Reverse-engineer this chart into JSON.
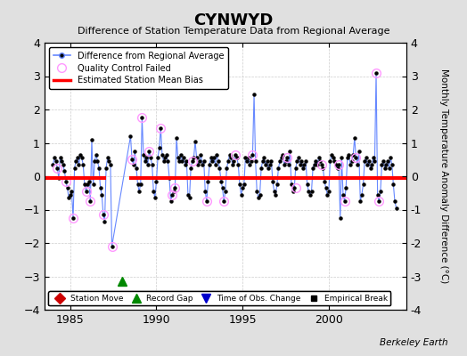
{
  "title": "CYNWYD",
  "subtitle": "Difference of Station Temperature Data from Regional Average",
  "ylabel_right": "Monthly Temperature Anomaly Difference (°C)",
  "xlim": [
    1983.5,
    2004.5
  ],
  "ylim": [
    -4,
    4
  ],
  "yticks": [
    -4,
    -3,
    -2,
    -1,
    0,
    1,
    2,
    3,
    4
  ],
  "xticks": [
    1985,
    1990,
    1995,
    2000
  ],
  "bias_value": -0.05,
  "bias_xstart": 1983.5,
  "bias_xend": 1987.1,
  "bias2_xstart": 1988.4,
  "bias2_xend": 2004.5,
  "background_color": "#e0e0e0",
  "plot_bg_color": "#ffffff",
  "line_color": "#6688ff",
  "dot_color": "#000000",
  "bias_color": "#ff0000",
  "qc_color": "#ff99ff",
  "record_gap_x": 1988.0,
  "record_gap_y": -3.15,
  "data_x": [
    1984.0,
    1984.083,
    1984.167,
    1984.25,
    1984.333,
    1984.417,
    1984.5,
    1984.583,
    1984.667,
    1984.75,
    1984.833,
    1984.917,
    1985.0,
    1985.083,
    1985.167,
    1985.25,
    1985.333,
    1985.417,
    1985.5,
    1985.583,
    1985.667,
    1985.75,
    1985.833,
    1985.917,
    1986.0,
    1986.083,
    1986.167,
    1986.25,
    1986.333,
    1986.417,
    1986.5,
    1986.583,
    1986.667,
    1986.75,
    1986.833,
    1986.917,
    1987.0,
    1987.083,
    1987.167,
    1987.25,
    1987.333,
    1987.417,
    1988.5,
    1988.583,
    1988.667,
    1988.75,
    1988.833,
    1988.917,
    1989.0,
    1989.083,
    1989.167,
    1989.25,
    1989.333,
    1989.417,
    1989.5,
    1989.583,
    1989.667,
    1989.75,
    1989.833,
    1989.917,
    1990.0,
    1990.083,
    1990.167,
    1990.25,
    1990.333,
    1990.417,
    1990.5,
    1990.583,
    1990.667,
    1990.75,
    1990.833,
    1990.917,
    1991.0,
    1991.083,
    1991.167,
    1991.25,
    1991.333,
    1991.417,
    1991.5,
    1991.583,
    1991.667,
    1991.75,
    1991.833,
    1991.917,
    1992.0,
    1992.083,
    1992.167,
    1992.25,
    1992.333,
    1992.417,
    1992.5,
    1992.583,
    1992.667,
    1992.75,
    1992.833,
    1992.917,
    1993.0,
    1993.083,
    1993.167,
    1993.25,
    1993.333,
    1993.417,
    1993.5,
    1993.583,
    1993.667,
    1993.75,
    1993.833,
    1993.917,
    1994.0,
    1994.083,
    1994.167,
    1994.25,
    1994.333,
    1994.417,
    1994.5,
    1994.583,
    1994.667,
    1994.75,
    1994.833,
    1994.917,
    1995.0,
    1995.083,
    1995.167,
    1995.25,
    1995.333,
    1995.417,
    1995.5,
    1995.583,
    1995.667,
    1995.75,
    1995.833,
    1995.917,
    1996.0,
    1996.083,
    1996.167,
    1996.25,
    1996.333,
    1996.417,
    1996.5,
    1996.583,
    1996.667,
    1996.75,
    1996.833,
    1996.917,
    1997.0,
    1997.083,
    1997.167,
    1997.25,
    1997.333,
    1997.417,
    1997.5,
    1997.583,
    1997.667,
    1997.75,
    1997.833,
    1997.917,
    1998.0,
    1998.083,
    1998.167,
    1998.25,
    1998.333,
    1998.417,
    1998.5,
    1998.583,
    1998.667,
    1998.75,
    1998.833,
    1998.917,
    1999.0,
    1999.083,
    1999.167,
    1999.25,
    1999.333,
    1999.417,
    1999.5,
    1999.583,
    1999.667,
    1999.75,
    1999.833,
    1999.917,
    2000.0,
    2000.083,
    2000.167,
    2000.25,
    2000.333,
    2000.417,
    2000.5,
    2000.583,
    2000.667,
    2000.75,
    2000.833,
    2000.917,
    2001.0,
    2001.083,
    2001.167,
    2001.25,
    2001.333,
    2001.417,
    2001.5,
    2001.583,
    2001.667,
    2001.75,
    2001.833,
    2001.917,
    2002.0,
    2002.083,
    2002.167,
    2002.25,
    2002.333,
    2002.417,
    2002.5,
    2002.583,
    2002.667,
    2002.75,
    2002.833,
    2002.917,
    2003.0,
    2003.083,
    2003.167,
    2003.25,
    2003.333,
    2003.417,
    2003.5,
    2003.583,
    2003.667,
    2003.75,
    2003.833,
    2003.917
  ],
  "data_y": [
    0.35,
    0.55,
    0.45,
    0.25,
    -0.05,
    0.55,
    0.45,
    0.35,
    0.15,
    -0.15,
    -0.35,
    -0.65,
    -0.55,
    -0.45,
    -1.25,
    0.25,
    0.45,
    0.55,
    0.35,
    0.65,
    0.55,
    0.35,
    -0.25,
    -0.45,
    -0.25,
    -0.15,
    -0.75,
    1.1,
    -0.25,
    0.45,
    0.65,
    0.45,
    0.25,
    -0.35,
    -0.55,
    -1.15,
    -1.35,
    0.25,
    0.55,
    0.45,
    0.35,
    -2.1,
    1.2,
    0.5,
    0.35,
    0.75,
    0.25,
    -0.25,
    -0.45,
    -0.25,
    1.75,
    0.65,
    0.45,
    0.55,
    0.35,
    0.75,
    0.55,
    0.35,
    -0.45,
    -0.65,
    -0.15,
    0.55,
    0.85,
    1.45,
    0.65,
    0.45,
    0.55,
    0.65,
    0.45,
    -0.05,
    -0.75,
    -0.55,
    -0.45,
    -0.35,
    1.15,
    0.55,
    0.45,
    0.65,
    0.45,
    0.55,
    0.35,
    0.45,
    -0.55,
    -0.65,
    0.25,
    0.45,
    0.55,
    1.05,
    0.55,
    0.35,
    0.45,
    0.65,
    0.35,
    0.45,
    -0.45,
    -0.75,
    -0.15,
    0.35,
    0.55,
    0.45,
    0.55,
    0.35,
    0.65,
    0.45,
    0.25,
    -0.15,
    -0.35,
    -0.75,
    -0.45,
    0.25,
    0.45,
    0.65,
    0.55,
    0.35,
    0.45,
    0.65,
    0.55,
    0.35,
    -0.25,
    -0.55,
    -0.35,
    -0.25,
    0.55,
    0.45,
    0.55,
    0.35,
    0.45,
    0.65,
    2.45,
    0.45,
    -0.45,
    -0.65,
    -0.55,
    0.25,
    0.45,
    0.55,
    0.35,
    0.45,
    0.25,
    0.35,
    0.45,
    -0.15,
    -0.45,
    -0.55,
    -0.25,
    0.25,
    0.45,
    0.55,
    0.65,
    0.35,
    0.45,
    0.55,
    0.35,
    0.75,
    -0.25,
    -0.45,
    -0.35,
    0.25,
    0.45,
    0.55,
    0.35,
    0.45,
    0.25,
    0.35,
    0.45,
    -0.25,
    -0.45,
    -0.55,
    -0.45,
    0.25,
    0.35,
    0.45,
    0.35,
    0.55,
    0.45,
    0.35,
    0.25,
    -0.15,
    -0.35,
    -0.55,
    -0.45,
    0.45,
    0.65,
    0.55,
    0.45,
    0.35,
    0.25,
    0.35,
    -1.25,
    0.55,
    -0.55,
    -0.75,
    -0.35,
    0.55,
    0.65,
    0.35,
    0.45,
    0.65,
    1.15,
    0.55,
    0.35,
    0.75,
    -0.75,
    -0.55,
    -0.25,
    0.45,
    0.55,
    0.35,
    0.45,
    0.25,
    0.35,
    0.55,
    0.45,
    3.1,
    -0.55,
    -0.75,
    -0.45,
    0.35,
    0.45,
    0.25,
    0.35,
    0.45,
    0.25,
    0.55,
    0.35,
    -0.25,
    -0.75,
    -0.95
  ],
  "qc_failed_x": [
    1984.25,
    1984.75,
    1985.167,
    1985.917,
    1986.167,
    1986.917,
    1987.417,
    1988.583,
    1989.167,
    1989.583,
    1990.25,
    1990.917,
    1991.083,
    1992.083,
    1992.917,
    1993.917,
    1994.583,
    1995.583,
    1997.583,
    1998.083,
    1999.583,
    2000.583,
    2000.917,
    2001.583,
    2002.75,
    2002.917
  ],
  "qc_failed_y": [
    0.25,
    -0.15,
    -1.25,
    -0.45,
    -0.75,
    -1.15,
    -2.1,
    0.5,
    1.75,
    0.75,
    1.45,
    -0.55,
    -0.35,
    0.45,
    -0.75,
    -0.75,
    0.65,
    0.65,
    0.55,
    -0.35,
    0.35,
    0.35,
    -0.75,
    0.55,
    3.1,
    -0.75
  ]
}
